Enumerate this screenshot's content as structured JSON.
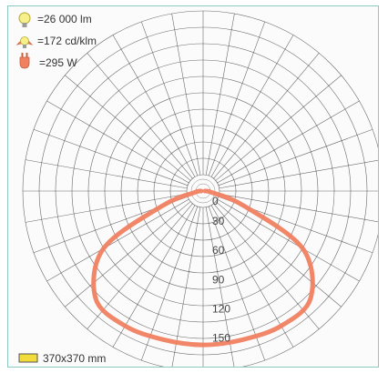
{
  "legend": {
    "flux": {
      "icon": "lightbulb-icon",
      "text": "=26 000 lm"
    },
    "intensity": {
      "icon": "luminous-intensity-icon",
      "text": "=172 cd/klm"
    },
    "power": {
      "icon": "power-plug-icon",
      "text": "=295 W"
    }
  },
  "footer": {
    "icon": "luminaire-size-icon",
    "text": "370x370 mm"
  },
  "colors": {
    "curve": "#f08060",
    "grid": "#3a3a3a",
    "panel_border": "#8cc8c0",
    "size_swatch": "#f2dc3c"
  },
  "chart_data": {
    "type": "polar",
    "radial_tick_labels": [
      "0",
      "30",
      "60",
      "90",
      "120",
      "150"
    ],
    "radial_ticks": [
      0,
      30,
      60,
      90,
      120,
      150
    ],
    "angles_deg": [
      0,
      15,
      30,
      45,
      60,
      70,
      80,
      90
    ],
    "intensity": [
      158,
      158,
      160,
      156,
      118,
      45,
      10,
      2
    ]
  }
}
